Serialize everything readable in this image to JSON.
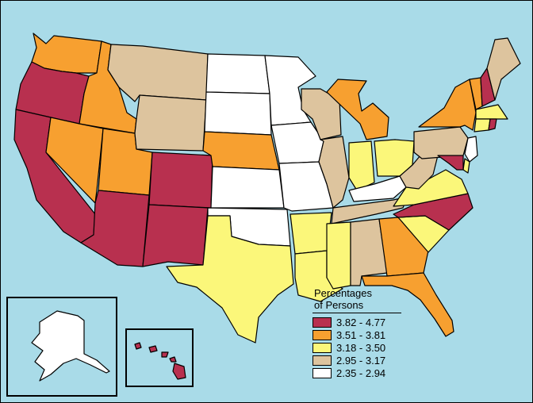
{
  "legend": {
    "title_line1": "Percentages",
    "title_line2": "of Persons",
    "classes": [
      {
        "label": "3.82 - 4.77",
        "color": "#b8304f"
      },
      {
        "label": "3.51 - 3.81",
        "color": "#f7a030"
      },
      {
        "label": "3.18 - 3.50",
        "color": "#fbf77a"
      },
      {
        "label": "2.95 - 3.17",
        "color": "#ddc49e"
      },
      {
        "label": "2.35 - 2.94",
        "color": "#ffffff"
      }
    ]
  },
  "colors": {
    "water": "#a9dbe8",
    "border": "#000000"
  },
  "state_classes": {
    "WA": 1,
    "OR": 0,
    "CA": 0,
    "ID": 1,
    "NV": 1,
    "UT": 1,
    "AZ": 0,
    "MT": 3,
    "WY": 3,
    "CO": 0,
    "NM": 0,
    "ND": 4,
    "SD": 4,
    "NE": 1,
    "KS": 4,
    "OK": 4,
    "TX": 2,
    "MN": 4,
    "IA": 4,
    "MO": 4,
    "AR": 2,
    "LA": 2,
    "WI": 3,
    "IL": 3,
    "MI": 1,
    "IN": 2,
    "OH": 2,
    "KY": 4,
    "TN": 3,
    "MS": 2,
    "AL": 3,
    "GA": 1,
    "FL": 1,
    "SC": 2,
    "NC": 0,
    "VA": 2,
    "WV": 3,
    "PA": 3,
    "NY": 1,
    "ME": 3,
    "VT": 1,
    "NH": 0,
    "MA": 2,
    "CT": 2,
    "RI": 0,
    "NJ": 4,
    "DE": 2,
    "MD": 0,
    "AK": 4,
    "HI": 0
  }
}
